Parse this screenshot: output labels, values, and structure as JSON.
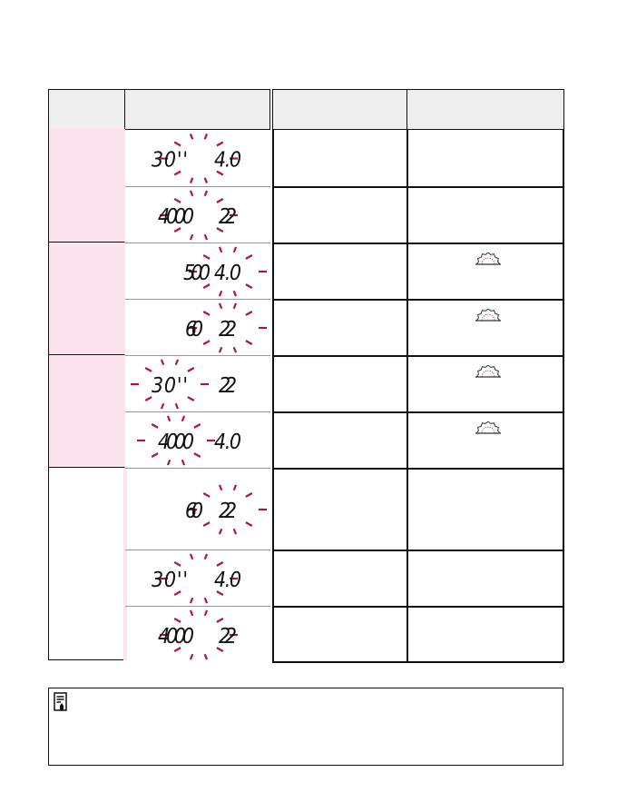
{
  "colors": {
    "header_bg": "#efefef",
    "group_pink": "#fde3ee",
    "blink_rays": "#b0143c",
    "border": "#111111"
  },
  "table": {
    "groups": [
      {
        "highlight": true,
        "rows": [
          0,
          1
        ]
      },
      {
        "highlight": true,
        "rows": [
          2,
          3
        ]
      },
      {
        "highlight": true,
        "rows": [
          4,
          5
        ]
      },
      {
        "highlight": false,
        "rows": [
          6,
          7,
          8
        ]
      }
    ],
    "rows": [
      {
        "shutter": "30''",
        "aperture": "4.0",
        "blink": "both",
        "dial_icon": false
      },
      {
        "shutter": "4000",
        "aperture": "22",
        "blink": "both",
        "dial_icon": false
      },
      {
        "shutter": "500",
        "aperture": "4.0",
        "blink": "aperture",
        "dial_icon": true
      },
      {
        "shutter": "60",
        "aperture": "22",
        "blink": "aperture",
        "dial_icon": true
      },
      {
        "shutter": "30''",
        "aperture": "22",
        "blink": "shutter",
        "dial_icon": true
      },
      {
        "shutter": "4000",
        "aperture": "4.0",
        "blink": "shutter",
        "dial_icon": true
      },
      {
        "shutter": "60",
        "aperture": "22",
        "blink": "aperture",
        "dial_icon": false
      },
      {
        "shutter": "30''",
        "aperture": "4.0",
        "blink": "both",
        "dial_icon": false
      },
      {
        "shutter": "4000",
        "aperture": "22",
        "blink": "both",
        "dial_icon": false
      }
    ]
  },
  "note": {
    "icon": "memo-note-icon"
  }
}
